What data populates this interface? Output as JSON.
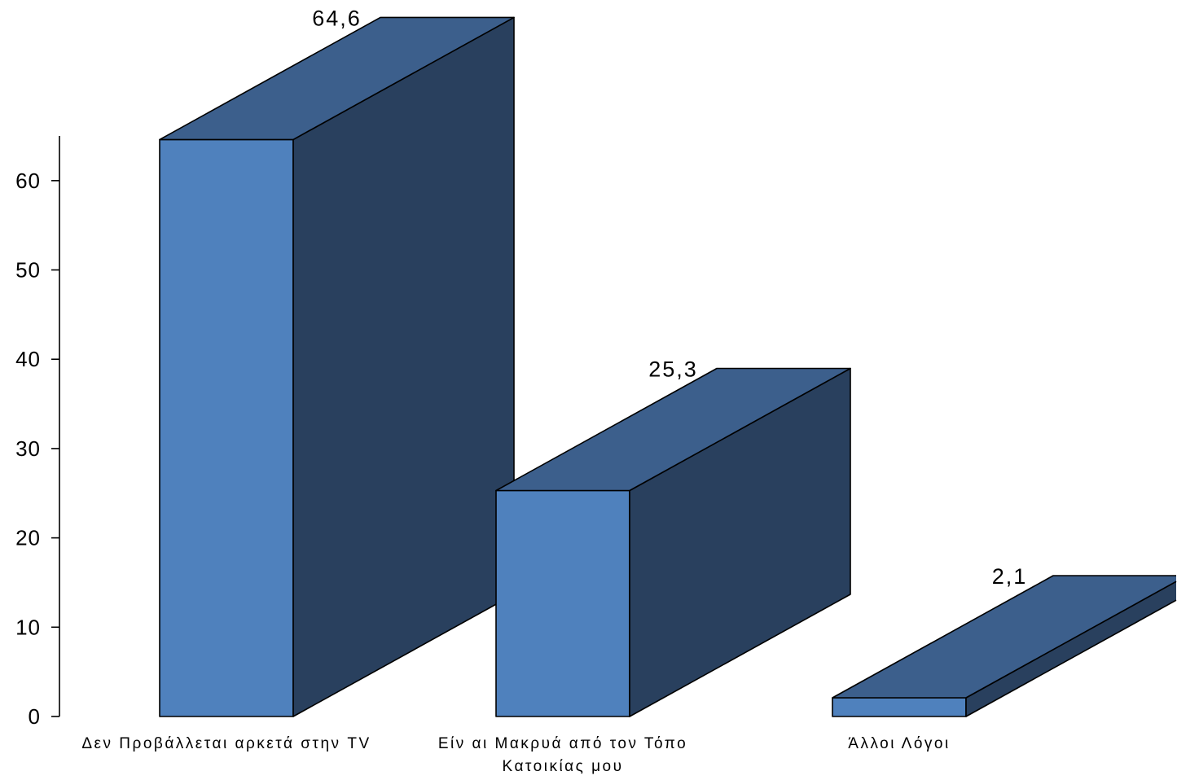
{
  "chart_data": {
    "type": "bar",
    "style": "3d",
    "categories": [
      "Δεν Προβάλλεται αρκετά στην TV",
      "Είν αι Μακρυά από τον Τόπο Κατοικίας μου",
      "Άλλοι Λόγοι"
    ],
    "values": [
      64.6,
      25.3,
      2.1
    ],
    "data_labels": [
      "64,6",
      "25,3",
      "2,1"
    ],
    "ylim": [
      0,
      65
    ],
    "y_ticks": [
      0,
      10,
      20,
      30,
      40,
      50,
      60
    ],
    "grid": false,
    "legend": "none",
    "colors": {
      "front": "#4F81BD",
      "top": "#3C5F8C",
      "side": "#29405E",
      "outline": "#000000",
      "text": "#000000"
    }
  }
}
